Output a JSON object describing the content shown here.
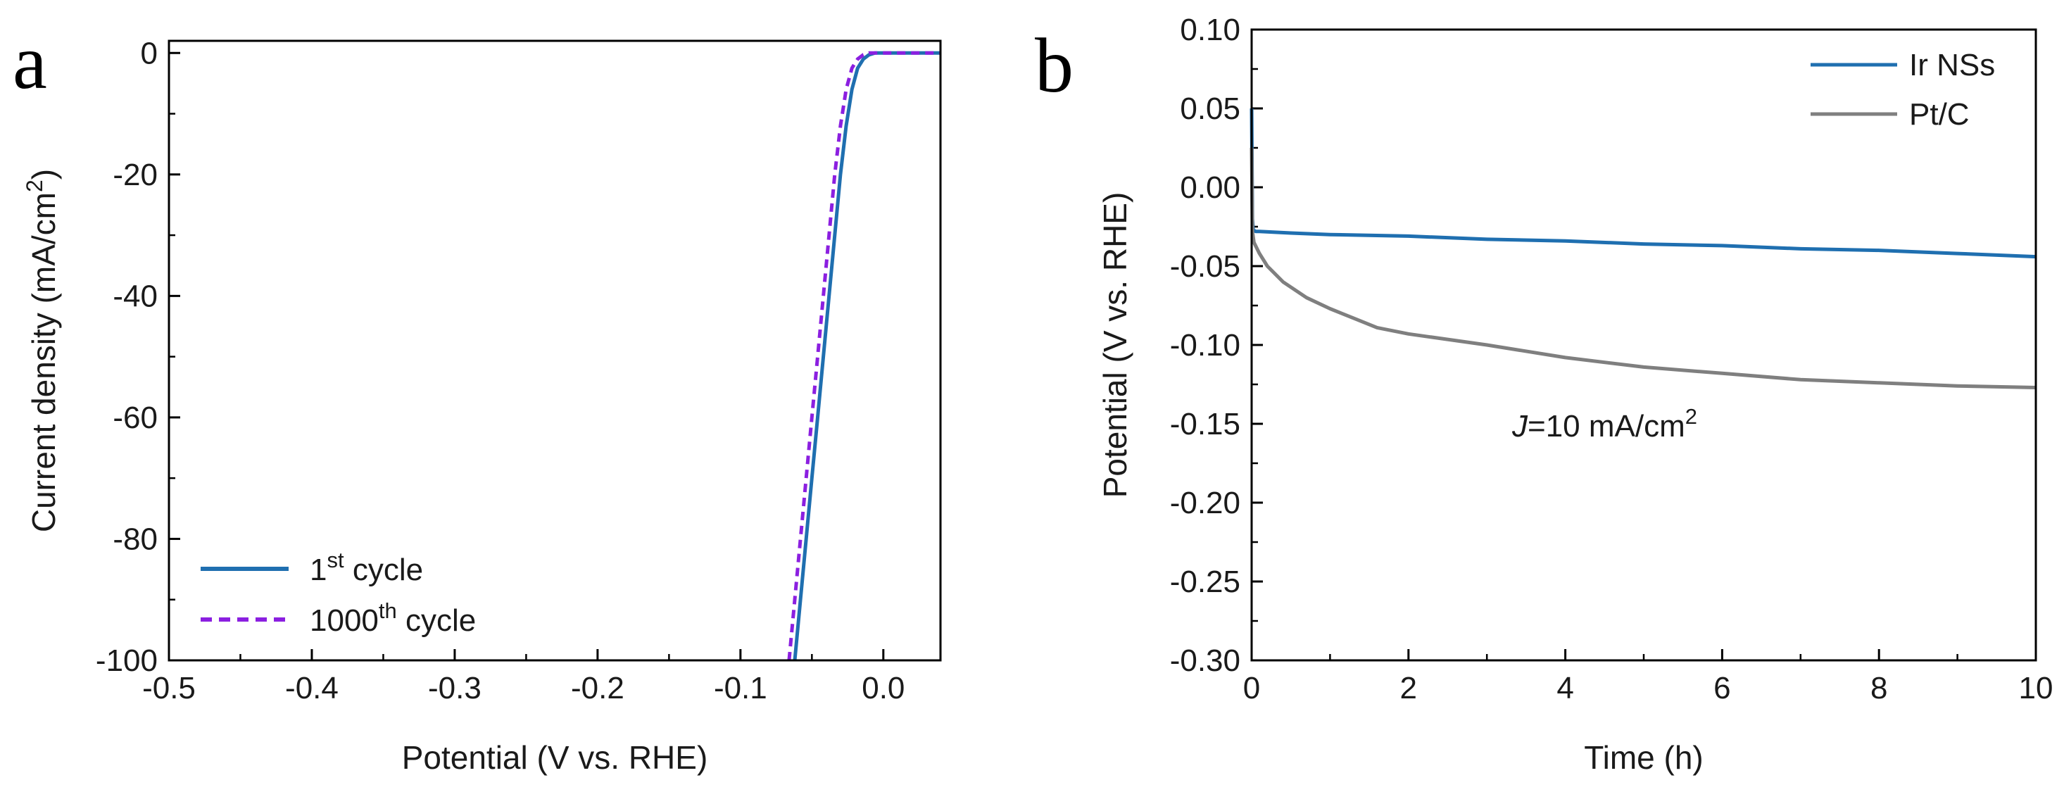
{
  "chart_data": [
    {
      "panel_label": "a",
      "type": "line",
      "xlabel": "Potential (V vs. RHE)",
      "ylabel": {
        "main": "Current density (mA/cm",
        "sup": "2",
        "tail": ")"
      },
      "xlim": [
        -0.5,
        0.04
      ],
      "ylim": [
        -100,
        2
      ],
      "xticks": [
        -0.5,
        -0.4,
        -0.3,
        -0.2,
        -0.1,
        0.0
      ],
      "xtick_labels": [
        "-0.5",
        "-0.4",
        "-0.3",
        "-0.2",
        "-0.1",
        "0.0"
      ],
      "yticks": [
        0,
        -20,
        -40,
        -60,
        -80,
        -100
      ],
      "ytick_labels": [
        "0",
        "-20",
        "-40",
        "-60",
        "-80",
        "-100"
      ],
      "legend": {
        "location": "bottom-left",
        "entries": [
          {
            "base": "1",
            "sup": "st",
            "rest": " cycle"
          },
          {
            "base": "1000",
            "sup": "th",
            "rest": " cycle"
          }
        ]
      },
      "series": [
        {
          "name": "1st cycle",
          "color": "#1f6fb0",
          "dash": "solid",
          "x": [
            -0.062,
            -0.058,
            -0.054,
            -0.05,
            -0.046,
            -0.042,
            -0.038,
            -0.034,
            -0.03,
            -0.026,
            -0.022,
            -0.018,
            -0.014,
            -0.01,
            -0.006,
            0.0,
            0.01,
            0.02,
            0.03,
            0.04
          ],
          "y": [
            -100,
            -90,
            -80,
            -70,
            -60,
            -50,
            -40,
            -30,
            -20,
            -12,
            -6,
            -2.5,
            -1.0,
            -0.3,
            0.0,
            0.0,
            0.0,
            0.0,
            0.0,
            0.0
          ]
        },
        {
          "name": "1000th cycle",
          "color": "#8b1fe0",
          "dash": "dashed",
          "x": [
            -0.066,
            -0.062,
            -0.058,
            -0.054,
            -0.05,
            -0.046,
            -0.042,
            -0.038,
            -0.034,
            -0.03,
            -0.026,
            -0.022,
            -0.018,
            -0.014,
            -0.01,
            -0.006,
            0.0,
            0.01,
            0.02,
            0.03,
            0.04
          ],
          "y": [
            -100,
            -90,
            -80,
            -70,
            -60,
            -50,
            -40,
            -30,
            -20,
            -12,
            -6,
            -2.5,
            -1.0,
            -0.3,
            0.0,
            0.0,
            0.0,
            0.0,
            0.0,
            0.0,
            0.0
          ]
        }
      ]
    },
    {
      "panel_label": "b",
      "type": "line",
      "xlabel": "Time (h)",
      "ylabel": "Potential (V vs. RHE)",
      "xlim": [
        0,
        10
      ],
      "ylim": [
        -0.3,
        0.1
      ],
      "xticks": [
        0,
        2,
        4,
        6,
        8,
        10
      ],
      "xtick_labels": [
        "0",
        "2",
        "4",
        "6",
        "8",
        "10"
      ],
      "yticks": [
        0.1,
        0.05,
        0.0,
        -0.05,
        -0.1,
        -0.15,
        -0.2,
        -0.25,
        -0.3
      ],
      "ytick_labels": [
        "0.10",
        "0.05",
        "0.00",
        "-0.05",
        "-0.10",
        "-0.15",
        "-0.20",
        "-0.25",
        "-0.30"
      ],
      "annotation": {
        "italic": "J",
        "text": "=10 mA/cm",
        "sup": "2"
      },
      "legend": {
        "location": "top-right",
        "entries": [
          "Ir NSs",
          "Pt/C"
        ]
      },
      "series": [
        {
          "name": "Ir NSs",
          "color": "#1f6fb0",
          "x": [
            0.0,
            0.01,
            0.02,
            0.05,
            0.1,
            0.5,
            1,
            2,
            3,
            4,
            5,
            6,
            7,
            8,
            9,
            10
          ],
          "y": [
            0.05,
            -0.02,
            -0.027,
            -0.028,
            -0.028,
            -0.029,
            -0.03,
            -0.031,
            -0.033,
            -0.034,
            -0.036,
            -0.037,
            -0.039,
            -0.04,
            -0.042,
            -0.044
          ]
        },
        {
          "name": "Pt/C",
          "color": "#7f7f7f",
          "x": [
            0.0,
            0.01,
            0.03,
            0.1,
            0.2,
            0.4,
            0.7,
            1.0,
            1.3,
            1.6,
            2,
            3,
            4,
            5,
            6,
            7,
            8,
            9,
            10
          ],
          "y": [
            0.025,
            -0.028,
            -0.035,
            -0.042,
            -0.05,
            -0.06,
            -0.07,
            -0.077,
            -0.083,
            -0.089,
            -0.093,
            -0.1,
            -0.108,
            -0.114,
            -0.118,
            -0.122,
            -0.124,
            -0.126,
            -0.127
          ]
        }
      ]
    }
  ]
}
